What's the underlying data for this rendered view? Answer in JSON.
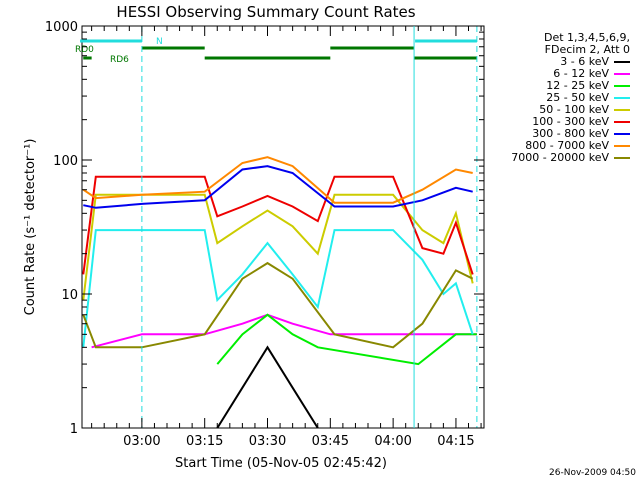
{
  "chart_data": {
    "type": "line",
    "title": "HESSI Observing Summary Count Rates",
    "xlabel": "Start Time (05-Nov-05 02:45:42)",
    "ylabel": "Count Rate (s⁻¹ detector⁻¹)",
    "ylim": [
      1,
      1000
    ],
    "yscale": "log",
    "xlim_minutes_after_start": [
      0,
      96
    ],
    "xticks": [
      "03:00",
      "03:15",
      "03:30",
      "03:45",
      "04:00",
      "04:15"
    ],
    "yticks": [
      "1",
      "10",
      "100",
      "1000"
    ],
    "timestamp": "26-Nov-2009 04:50",
    "legend_header": [
      "Det 1,3,4,5,6,9,",
      "FDecim 2, Att 0"
    ],
    "flags": [
      {
        "label": "N",
        "color": "#22dddd"
      },
      {
        "label": "RD0",
        "color": "#007700"
      },
      {
        "label": "RD6",
        "color": "#007700"
      }
    ],
    "series": [
      {
        "name": "3 - 6 keV",
        "color": "#000000",
        "x": [
          "03:18",
          "03:24",
          "03:30",
          "03:36",
          "03:42"
        ],
        "values": [
          1,
          2,
          4,
          2,
          1
        ]
      },
      {
        "name": "6 - 12 keV",
        "color": "#ff00ff",
        "x": [
          "02:48",
          "03:00",
          "03:15",
          "03:24",
          "03:30",
          "03:36",
          "03:45",
          "04:00",
          "04:15",
          "04:20"
        ],
        "values": [
          4,
          5,
          5,
          6,
          7,
          6,
          5,
          5,
          5,
          5
        ]
      },
      {
        "name": "12 - 25 keV",
        "color": "#00ee00",
        "x": [
          "03:18",
          "03:24",
          "03:30",
          "03:36",
          "03:42",
          "04:06",
          "04:15",
          "04:20"
        ],
        "values": [
          3,
          5,
          7,
          5,
          4,
          3,
          5,
          5
        ]
      },
      {
        "name": "25 - 50 keV",
        "color": "#22eeee",
        "x": [
          "02:46",
          "02:49",
          "03:00",
          "03:15",
          "03:18",
          "03:24",
          "03:30",
          "03:36",
          "03:42",
          "03:46",
          "04:00",
          "04:07",
          "04:12",
          "04:15",
          "04:19"
        ],
        "values": [
          4,
          30,
          30,
          30,
          9,
          14,
          24,
          14,
          8,
          30,
          30,
          18,
          10,
          12,
          5
        ]
      },
      {
        "name": "50 - 100 keV",
        "color": "#cccc00",
        "x": [
          "02:46",
          "02:49",
          "03:00",
          "03:15",
          "03:18",
          "03:24",
          "03:30",
          "03:36",
          "03:42",
          "03:46",
          "04:00",
          "04:07",
          "04:12",
          "04:15",
          "04:19"
        ],
        "values": [
          9,
          55,
          55,
          55,
          24,
          32,
          42,
          32,
          20,
          55,
          55,
          30,
          24,
          40,
          12
        ]
      },
      {
        "name": "100 - 300 keV",
        "color": "#ee0000",
        "x": [
          "02:46",
          "02:49",
          "03:00",
          "03:15",
          "03:18",
          "03:24",
          "03:30",
          "03:36",
          "03:42",
          "03:46",
          "04:00",
          "04:07",
          "04:12",
          "04:15",
          "04:19"
        ],
        "values": [
          14,
          75,
          75,
          75,
          38,
          45,
          54,
          45,
          35,
          75,
          75,
          22,
          20,
          34,
          14
        ]
      },
      {
        "name": "300 - 800 keV",
        "color": "#0000ee",
        "x": [
          "02:46",
          "02:49",
          "03:00",
          "03:15",
          "03:24",
          "03:30",
          "03:36",
          "03:46",
          "04:00",
          "04:07",
          "04:15",
          "04:19"
        ],
        "values": [
          46,
          44,
          47,
          50,
          85,
          90,
          80,
          45,
          45,
          50,
          62,
          58
        ]
      },
      {
        "name": "800 - 7000 keV",
        "color": "#ff8800",
        "x": [
          "02:46",
          "02:49",
          "03:00",
          "03:15",
          "03:24",
          "03:30",
          "03:36",
          "03:46",
          "04:00",
          "04:07",
          "04:15",
          "04:19"
        ],
        "values": [
          60,
          52,
          55,
          58,
          95,
          105,
          90,
          48,
          48,
          60,
          85,
          80
        ]
      },
      {
        "name": "7000 - 20000 keV",
        "color": "#888800",
        "x": [
          "02:46",
          "02:49",
          "03:00",
          "03:15",
          "03:24",
          "03:30",
          "03:36",
          "03:46",
          "04:00",
          "04:07",
          "04:15",
          "04:19"
        ],
        "values": [
          7,
          4,
          4,
          5,
          13,
          17,
          13,
          5,
          4,
          6,
          15,
          13
        ]
      }
    ]
  }
}
